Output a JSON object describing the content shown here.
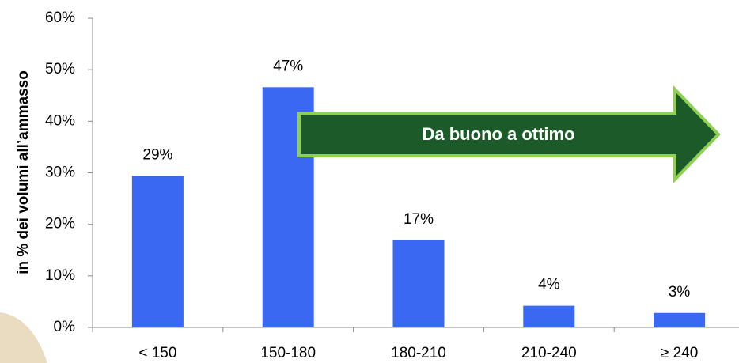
{
  "chart_data": {
    "type": "bar",
    "y_label": "in % dei volumi all’ammasso",
    "annotation": "Da buono a ottimo",
    "categories": [
      "< 150",
      "150-180",
      "180-210",
      "210-240",
      "≥ 240"
    ],
    "values": [
      29.4,
      46.6,
      16.9,
      4.2,
      2.8
    ],
    "value_labels": [
      "29%",
      "47%",
      "17%",
      "4%",
      "3%"
    ],
    "color": "#3b68f2",
    "ylim": [
      0,
      60
    ],
    "yticks": [
      {
        "value": 0,
        "label": "0%"
      },
      {
        "value": 10,
        "label": "10%"
      },
      {
        "value": 20,
        "label": "20%"
      },
      {
        "value": 30,
        "label": "30%"
      },
      {
        "value": 40,
        "label": "40%"
      },
      {
        "value": 50,
        "label": "50%"
      },
      {
        "value": 60,
        "label": "60%"
      }
    ],
    "grid": false
  }
}
